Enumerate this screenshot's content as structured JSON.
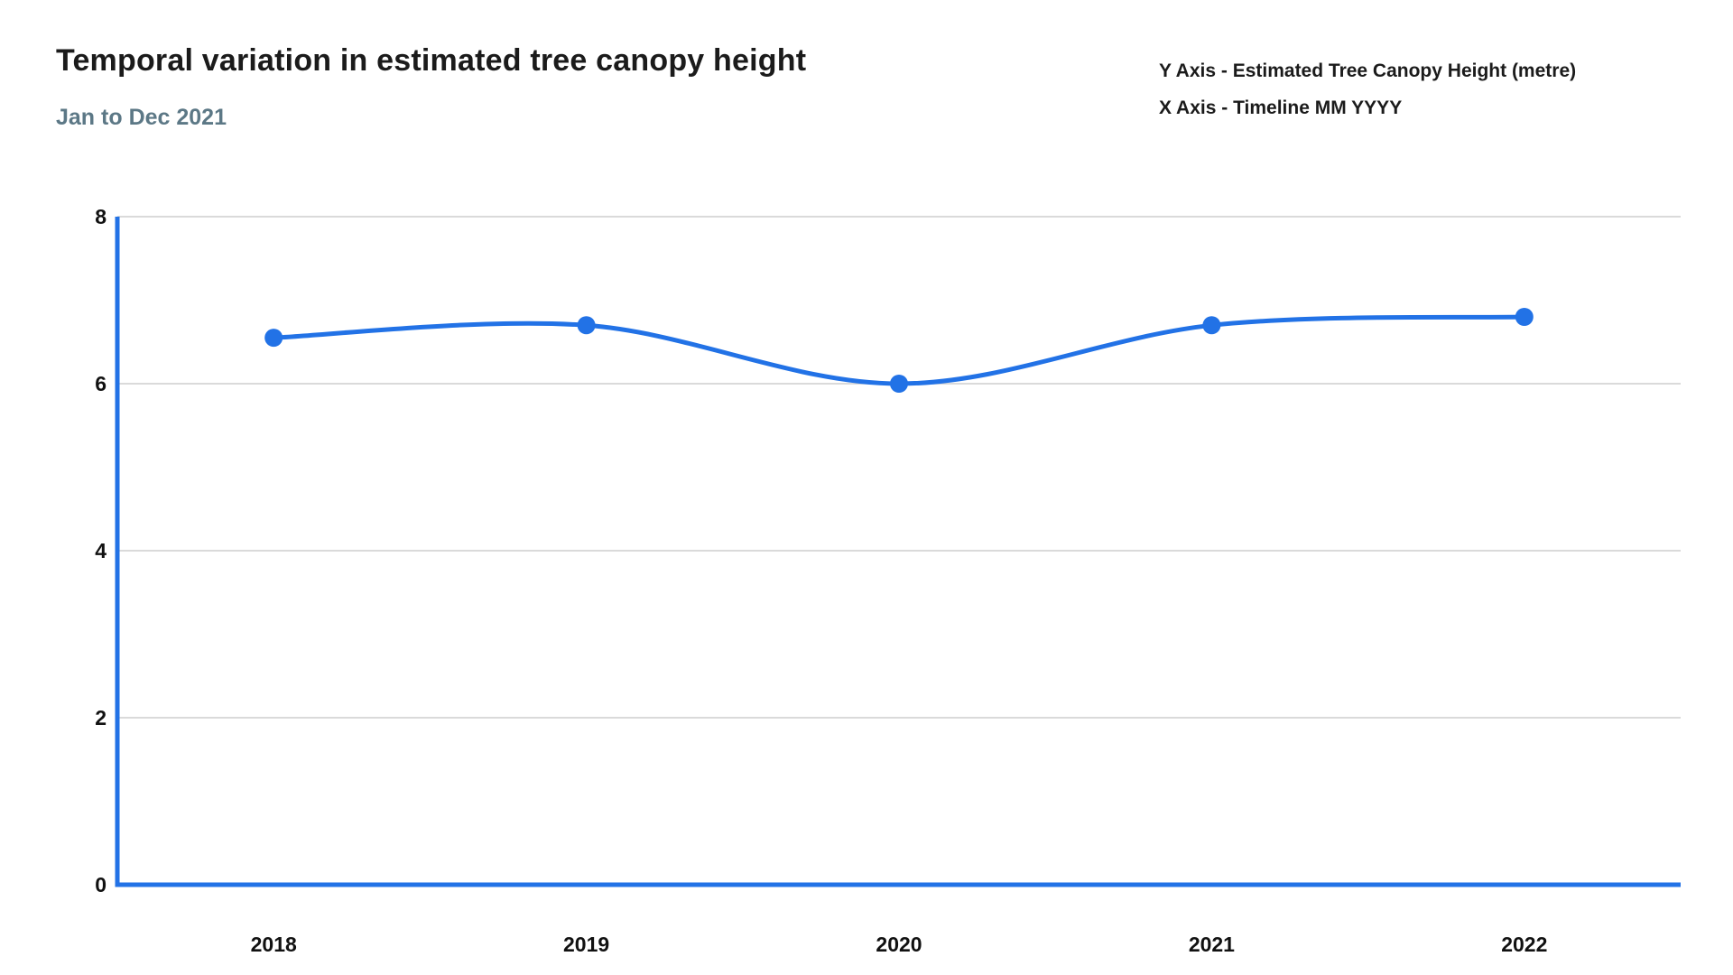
{
  "header": {
    "title": "Temporal variation in estimated tree canopy height",
    "subtitle": "Jan to Dec 2021",
    "axis_notes": {
      "y_note": "Y Axis - Estimated Tree Canopy Height (metre)",
      "x_note": "X Axis - Timeline MM YYYY"
    }
  },
  "colors": {
    "line": "#2272e6",
    "axis": "#2272e6",
    "point": "#2272e6",
    "grid": "#cdcdcd",
    "title": "#1b1b1b",
    "subtitle": "#5c7886",
    "tick_label": "#111111"
  },
  "chart_data": {
    "type": "line",
    "title": "Temporal variation in estimated tree canopy height",
    "subtitle": "Jan to Dec 2021",
    "categories": [
      "2018",
      "2019",
      "2020",
      "2021",
      "2022"
    ],
    "series": [
      {
        "name": "Estimated Tree Canopy Height (metre)",
        "values": [
          6.55,
          6.7,
          6.0,
          6.7,
          6.8
        ]
      }
    ],
    "xlabel": "Timeline MM YYYY",
    "ylabel": "Estimated Tree Canopy Height (metre)",
    "ylim": [
      0,
      8
    ],
    "yticks": [
      0,
      2,
      4,
      6,
      8
    ],
    "grid": true,
    "legend_position": "none",
    "smooth": true
  }
}
